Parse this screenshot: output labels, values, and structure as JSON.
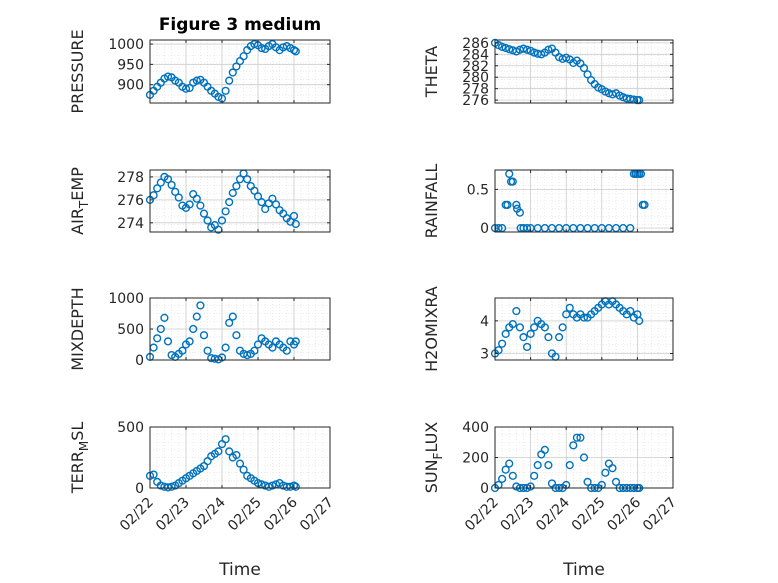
{
  "figure_title": "Figure 3 medium",
  "colors": {
    "marker": "#0072BD",
    "axis": "#262626",
    "grid": "#dcdcdc"
  },
  "chart_data": [
    {
      "type": "scatter",
      "title": "Figure 3 medium",
      "xlabel": "",
      "ylabel": "PRESSURE",
      "xlim": [
        0,
        5
      ],
      "ylim": [
        855,
        1010
      ],
      "xticks": [
        "02/22",
        "02/23",
        "02/24",
        "02/25",
        "02/26",
        "02/27"
      ],
      "yticks": [
        900,
        950,
        1000
      ],
      "x": [
        0,
        0.1,
        0.2,
        0.3,
        0.4,
        0.5,
        0.6,
        0.7,
        0.8,
        0.9,
        1,
        1.1,
        1.2,
        1.3,
        1.4,
        1.5,
        1.6,
        1.7,
        1.8,
        1.9,
        2,
        2.1,
        2.2,
        2.3,
        2.4,
        2.5,
        2.6,
        2.7,
        2.8,
        2.9,
        3,
        3.1,
        3.2,
        3.3,
        3.4,
        3.5,
        3.6,
        3.7,
        3.8,
        3.9,
        4,
        4.05
      ],
      "y": [
        875,
        885,
        895,
        905,
        915,
        920,
        918,
        910,
        905,
        895,
        890,
        892,
        905,
        910,
        912,
        905,
        895,
        885,
        878,
        870,
        866,
        885,
        910,
        930,
        945,
        958,
        970,
        985,
        995,
        1000,
        997,
        990,
        988,
        995,
        1000,
        992,
        985,
        992,
        995,
        990,
        985,
        982
      ]
    },
    {
      "type": "scatter",
      "title": "",
      "xlabel": "",
      "ylabel": "THETA",
      "xlim": [
        0,
        5
      ],
      "ylim": [
        275.5,
        286.5
      ],
      "xticks": [
        "02/22",
        "02/23",
        "02/24",
        "02/25",
        "02/26",
        "02/27"
      ],
      "yticks": [
        276,
        278,
        280,
        282,
        284,
        286
      ],
      "x": [
        0,
        0.1,
        0.2,
        0.3,
        0.4,
        0.5,
        0.6,
        0.7,
        0.8,
        0.9,
        1,
        1.1,
        1.2,
        1.3,
        1.4,
        1.5,
        1.6,
        1.7,
        1.8,
        1.9,
        2,
        2.1,
        2.2,
        2.3,
        2.4,
        2.5,
        2.6,
        2.7,
        2.8,
        2.9,
        3,
        3.1,
        3.2,
        3.3,
        3.4,
        3.5,
        3.6,
        3.7,
        3.8,
        3.9,
        4,
        4.05
      ],
      "y": [
        286,
        285.6,
        285.3,
        285.1,
        284.9,
        284.7,
        284.5,
        284.8,
        285,
        284.8,
        284.6,
        284.3,
        284.1,
        284,
        284.3,
        284.8,
        285,
        284.3,
        283.5,
        283.2,
        283.4,
        283.1,
        282.5,
        282.9,
        282.4,
        281.6,
        280.5,
        279.5,
        278.8,
        278.2,
        277.9,
        277.5,
        277.2,
        277,
        277.2,
        276.8,
        276.5,
        276.3,
        276.2,
        276.1,
        276,
        276
      ]
    },
    {
      "type": "scatter",
      "title": "",
      "xlabel": "",
      "ylabel": "AIR_TEMP",
      "xlim": [
        0,
        5
      ],
      "ylim": [
        273.2,
        278.6
      ],
      "xticks": [
        "02/22",
        "02/23",
        "02/24",
        "02/25",
        "02/26",
        "02/27"
      ],
      "yticks": [
        274,
        276,
        278
      ],
      "x": [
        0,
        0.1,
        0.2,
        0.3,
        0.4,
        0.5,
        0.6,
        0.7,
        0.8,
        0.9,
        1,
        1.1,
        1.2,
        1.3,
        1.4,
        1.5,
        1.6,
        1.7,
        1.8,
        1.9,
        2,
        2.1,
        2.2,
        2.3,
        2.4,
        2.5,
        2.6,
        2.7,
        2.8,
        2.9,
        3,
        3.1,
        3.2,
        3.3,
        3.4,
        3.5,
        3.6,
        3.7,
        3.8,
        3.9,
        4,
        4.05
      ],
      "y": [
        276,
        276.4,
        277,
        277.5,
        278,
        277.8,
        277.3,
        276.7,
        276.2,
        275.5,
        275.3,
        275.6,
        276.5,
        276.1,
        275.5,
        274.8,
        274.2,
        273.6,
        273.8,
        273.4,
        274.2,
        275,
        275.8,
        276.6,
        277.2,
        277.8,
        278.3,
        277.8,
        277.2,
        276.8,
        276.3,
        275.8,
        275.2,
        275.7,
        276.1,
        275.6,
        275.1,
        274.8,
        274.4,
        274.1,
        274.6,
        273.9
      ]
    },
    {
      "type": "scatter",
      "title": "",
      "xlabel": "",
      "ylabel": "RAINFALL",
      "xlim": [
        0,
        5
      ],
      "ylim": [
        -0.05,
        0.75
      ],
      "xticks": [
        "02/22",
        "02/23",
        "02/24",
        "02/25",
        "02/26",
        "02/27"
      ],
      "yticks": [
        0,
        0.5
      ],
      "x": [
        0,
        0.1,
        0.2,
        0.3,
        0.35,
        0.4,
        0.45,
        0.5,
        0.6,
        0.62,
        0.7,
        0.72,
        0.8,
        0.9,
        1,
        1.2,
        1.4,
        1.6,
        1.8,
        2,
        2.2,
        2.4,
        2.6,
        2.8,
        3,
        3.2,
        3.4,
        3.6,
        3.8,
        3.9,
        3.95,
        4,
        4.05,
        4.1,
        4.15,
        4.2
      ],
      "y": [
        0,
        0,
        0,
        0.3,
        0.3,
        0.7,
        0.6,
        0.6,
        0.3,
        0.25,
        0.2,
        0,
        0,
        0,
        0,
        0,
        0,
        0,
        0,
        0,
        0,
        0,
        0,
        0,
        0,
        0,
        0,
        0,
        0,
        0.7,
        0.7,
        0.7,
        0.7,
        0.7,
        0.3,
        0.3
      ]
    },
    {
      "type": "scatter",
      "title": "",
      "xlabel": "",
      "ylabel": "MIXDEPTH",
      "xlim": [
        0,
        5
      ],
      "ylim": [
        0,
        1000
      ],
      "xticks": [
        "02/22",
        "02/23",
        "02/24",
        "02/25",
        "02/26",
        "02/27"
      ],
      "yticks": [
        0,
        500,
        1000
      ],
      "x": [
        0,
        0.1,
        0.2,
        0.3,
        0.4,
        0.5,
        0.6,
        0.7,
        0.8,
        0.9,
        1,
        1.1,
        1.2,
        1.3,
        1.4,
        1.5,
        1.6,
        1.7,
        1.8,
        1.9,
        2,
        2.1,
        2.2,
        2.3,
        2.4,
        2.5,
        2.6,
        2.7,
        2.8,
        2.9,
        3,
        3.1,
        3.2,
        3.3,
        3.4,
        3.5,
        3.6,
        3.7,
        3.8,
        3.9,
        4,
        4.05
      ],
      "y": [
        50,
        200,
        350,
        500,
        680,
        300,
        80,
        50,
        100,
        150,
        250,
        300,
        500,
        700,
        880,
        400,
        150,
        30,
        20,
        10,
        40,
        200,
        600,
        700,
        400,
        150,
        100,
        80,
        100,
        150,
        250,
        350,
        300,
        250,
        200,
        300,
        250,
        200,
        150,
        300,
        250,
        300
      ]
    },
    {
      "type": "scatter",
      "title": "",
      "xlabel": "",
      "ylabel": "H2OMIXRA",
      "xlim": [
        0,
        5
      ],
      "ylim": [
        2.8,
        4.7
      ],
      "xticks": [
        "02/22",
        "02/23",
        "02/24",
        "02/25",
        "02/26",
        "02/27"
      ],
      "yticks": [
        3,
        4
      ],
      "x": [
        0,
        0.1,
        0.2,
        0.3,
        0.4,
        0.5,
        0.6,
        0.7,
        0.8,
        0.9,
        1,
        1.1,
        1.2,
        1.3,
        1.4,
        1.5,
        1.6,
        1.7,
        1.8,
        1.9,
        2,
        2.1,
        2.2,
        2.3,
        2.4,
        2.5,
        2.6,
        2.7,
        2.8,
        2.9,
        3,
        3.1,
        3.2,
        3.3,
        3.4,
        3.5,
        3.6,
        3.7,
        3.8,
        3.9,
        4,
        4.05
      ],
      "y": [
        3,
        3.1,
        3.3,
        3.6,
        3.8,
        3.9,
        4.3,
        3.8,
        3.5,
        3.2,
        3.6,
        3.8,
        4,
        3.9,
        3.8,
        3.5,
        3,
        2.9,
        3.5,
        3.8,
        4.2,
        4.4,
        4.2,
        4.1,
        4.2,
        4.1,
        4.1,
        4.2,
        4.3,
        4.4,
        4.5,
        4.6,
        4.5,
        4.6,
        4.5,
        4.4,
        4.3,
        4.2,
        4.3,
        4.1,
        4.2,
        4
      ]
    },
    {
      "type": "scatter",
      "title": "",
      "xlabel": "Time",
      "ylabel": "TERR_MSL",
      "xlim": [
        0,
        5
      ],
      "ylim": [
        0,
        500
      ],
      "xticks": [
        "02/22",
        "02/23",
        "02/24",
        "02/25",
        "02/26",
        "02/27"
      ],
      "yticks": [
        0,
        500
      ],
      "x": [
        0,
        0.1,
        0.2,
        0.3,
        0.4,
        0.5,
        0.6,
        0.7,
        0.8,
        0.9,
        1,
        1.1,
        1.2,
        1.3,
        1.4,
        1.5,
        1.6,
        1.7,
        1.8,
        1.9,
        2,
        2.1,
        2.2,
        2.3,
        2.4,
        2.5,
        2.6,
        2.7,
        2.8,
        2.9,
        3,
        3.1,
        3.2,
        3.3,
        3.4,
        3.5,
        3.6,
        3.7,
        3.8,
        3.9,
        4,
        4.05
      ],
      "y": [
        100,
        110,
        50,
        20,
        10,
        5,
        10,
        20,
        40,
        60,
        80,
        100,
        120,
        140,
        160,
        180,
        220,
        260,
        280,
        300,
        360,
        400,
        300,
        250,
        270,
        200,
        150,
        100,
        80,
        60,
        40,
        30,
        20,
        10,
        20,
        30,
        40,
        20,
        10,
        10,
        20,
        10
      ]
    },
    {
      "type": "scatter",
      "title": "",
      "xlabel": "Time",
      "ylabel": "SUN_FLUX",
      "xlim": [
        0,
        5
      ],
      "ylim": [
        0,
        400
      ],
      "xticks": [
        "02/22",
        "02/23",
        "02/24",
        "02/25",
        "02/26",
        "02/27"
      ],
      "yticks": [
        0,
        200,
        400
      ],
      "x": [
        0,
        0.1,
        0.2,
        0.3,
        0.4,
        0.5,
        0.6,
        0.7,
        0.8,
        0.9,
        1,
        1.1,
        1.2,
        1.3,
        1.4,
        1.5,
        1.6,
        1.7,
        1.8,
        1.9,
        2,
        2.1,
        2.2,
        2.3,
        2.4,
        2.5,
        2.6,
        2.7,
        2.8,
        2.9,
        3,
        3.1,
        3.2,
        3.3,
        3.4,
        3.5,
        3.6,
        3.7,
        3.8,
        3.9,
        4,
        4.05
      ],
      "y": [
        0,
        20,
        60,
        120,
        160,
        80,
        10,
        0,
        0,
        0,
        10,
        80,
        150,
        220,
        250,
        150,
        30,
        0,
        0,
        0,
        20,
        150,
        280,
        330,
        330,
        200,
        40,
        0,
        0,
        0,
        20,
        100,
        160,
        130,
        40,
        0,
        0,
        0,
        0,
        0,
        0,
        0
      ]
    }
  ]
}
